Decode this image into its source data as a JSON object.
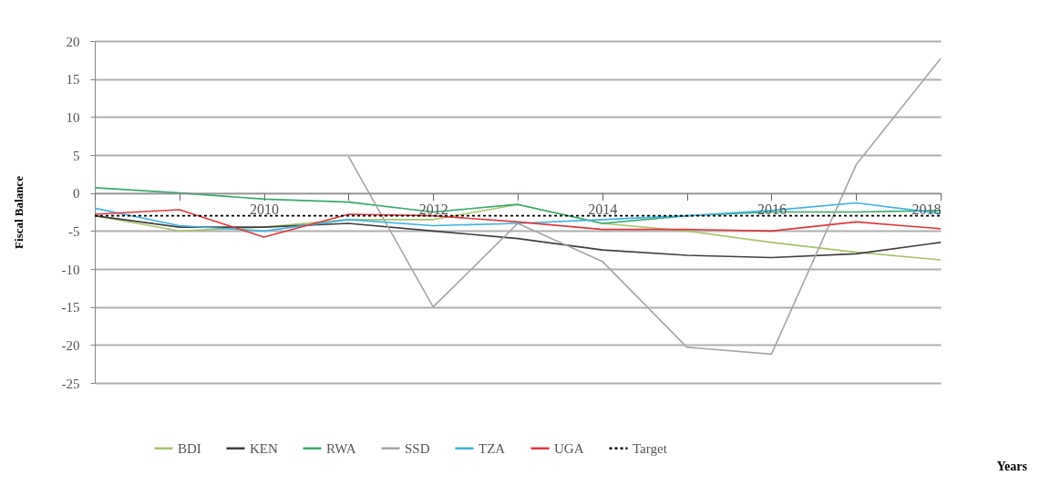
{
  "chart_data": {
    "type": "line",
    "annotations": [
      "Years"
    ],
    "ylabel": "Fiscal Balance",
    "x": [
      2008,
      2009,
      2010,
      2011,
      2012,
      2013,
      2014,
      2015,
      2016,
      2017,
      2018
    ],
    "xlim": [
      2008,
      2018
    ],
    "xticks": [
      {
        "value": 2008,
        "label": null
      },
      {
        "value": 2009,
        "label": null
      },
      2010,
      {
        "value": 2011,
        "label": null
      },
      2012,
      {
        "value": 2013,
        "label": null
      },
      2014,
      {
        "value": 2015,
        "label": null
      },
      2016,
      {
        "value": 2017,
        "label": null
      },
      2018
    ],
    "ylim": [
      -25,
      20
    ],
    "yticks": [
      -25,
      -20,
      -15,
      -10,
      -5,
      0,
      5,
      10,
      15,
      20
    ],
    "grid": "y",
    "legend": "bottom",
    "line_style": "solid",
    "series": [
      {
        "name": "BDI",
        "color": "#a9c46c",
        "values": [
          -3,
          -5,
          -4.5,
          -3.5,
          -3.5,
          -1.5,
          -4,
          -5,
          -6.5,
          -7.8,
          -8.8
        ]
      },
      {
        "name": "KEN",
        "color": "#404040",
        "values": [
          -3,
          -4.5,
          -4.5,
          -4,
          -5,
          -6,
          -7.5,
          -8.2,
          -8.5,
          -8,
          -6.5
        ]
      },
      {
        "name": "RWA",
        "color": "#3aaa6e",
        "values": [
          0.7,
          0,
          -0.8,
          -1.2,
          -2.5,
          -1.5,
          -4,
          -3,
          -2.5,
          -2.5,
          -2.3
        ]
      },
      {
        "name": "SSD",
        "color": "#a6a6a6",
        "values": [
          null,
          null,
          null,
          4.8,
          -15,
          -4,
          -9,
          -20.3,
          -21.2,
          3.7,
          17.7
        ]
      },
      {
        "name": "TZA",
        "color": "#3fb3e0",
        "values": [
          -2,
          -4.3,
          -5,
          -3.5,
          -4.3,
          -4,
          -3.5,
          -3,
          -2.3,
          -1.3,
          -2.7
        ]
      },
      {
        "name": "UGA",
        "color": "#e0393e",
        "values": [
          -2.8,
          -2.2,
          -5.8,
          -2.8,
          -3,
          -3.8,
          -4.8,
          -4.8,
          -5,
          -3.8,
          -4.7
        ]
      },
      {
        "name": "Target",
        "color": "#000000",
        "line_style": "dotted",
        "values": [
          -3,
          -3,
          -3,
          -3,
          -3,
          -3,
          -3,
          -3,
          -3,
          -3,
          -3
        ]
      }
    ]
  }
}
